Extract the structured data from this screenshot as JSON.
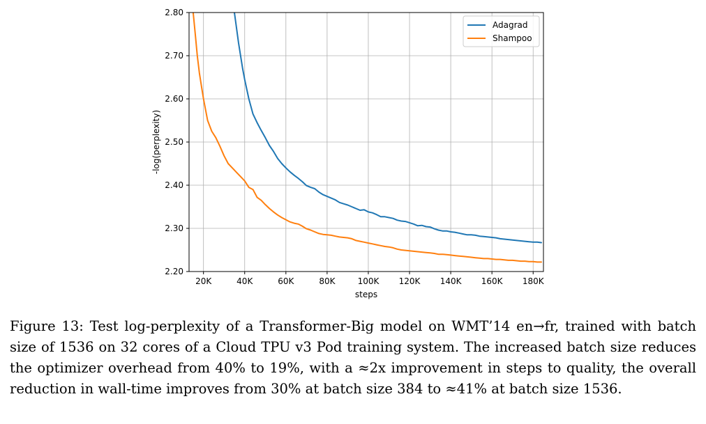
{
  "chart_data": {
    "type": "line",
    "xlabel": "steps",
    "ylabel": "-log(perplexity)",
    "xlim": [
      13000,
      185000
    ],
    "ylim": [
      2.2,
      2.8
    ],
    "x_ticks": [
      20000,
      40000,
      60000,
      80000,
      100000,
      120000,
      140000,
      160000,
      180000
    ],
    "x_tick_labels": [
      "20K",
      "40K",
      "60K",
      "80K",
      "100K",
      "120K",
      "140K",
      "160K",
      "180K"
    ],
    "y_ticks": [
      2.2,
      2.3,
      2.4,
      2.5,
      2.6,
      2.7,
      2.8
    ],
    "y_tick_labels": [
      "2.20",
      "2.30",
      "2.40",
      "2.50",
      "2.60",
      "2.70",
      "2.80"
    ],
    "grid": true,
    "legend_position": "top-right",
    "series": [
      {
        "name": "Adagrad",
        "color": "#1f77b4",
        "x": [
          35000,
          37000,
          39000,
          40000,
          42000,
          44000,
          46000,
          48000,
          50000,
          52000,
          54000,
          56000,
          58000,
          60000,
          62000,
          64000,
          66000,
          68000,
          70000,
          72000,
          74000,
          76000,
          78000,
          80000,
          82000,
          84000,
          86000,
          88000,
          90000,
          92000,
          94000,
          96000,
          98000,
          100000,
          102000,
          104000,
          106000,
          108000,
          110000,
          112000,
          114000,
          116000,
          118000,
          120000,
          122000,
          124000,
          126000,
          128000,
          130000,
          132000,
          134000,
          136000,
          138000,
          140000,
          142000,
          144000,
          146000,
          148000,
          150000,
          152000,
          154000,
          156000,
          158000,
          160000,
          162000,
          164000,
          166000,
          168000,
          170000,
          172000,
          174000,
          176000,
          178000,
          180000,
          182000,
          184000
        ],
        "y": [
          2.8,
          2.73,
          2.67,
          2.645,
          2.6,
          2.565,
          2.545,
          2.527,
          2.51,
          2.492,
          2.478,
          2.462,
          2.45,
          2.44,
          2.431,
          2.423,
          2.416,
          2.408,
          2.399,
          2.395,
          2.392,
          2.384,
          2.378,
          2.374,
          2.37,
          2.366,
          2.36,
          2.357,
          2.354,
          2.35,
          2.346,
          2.342,
          2.343,
          2.338,
          2.336,
          2.332,
          2.327,
          2.327,
          2.325,
          2.323,
          2.319,
          2.317,
          2.316,
          2.313,
          2.31,
          2.306,
          2.307,
          2.304,
          2.303,
          2.299,
          2.296,
          2.294,
          2.294,
          2.292,
          2.291,
          2.289,
          2.287,
          2.285,
          2.285,
          2.284,
          2.282,
          2.281,
          2.28,
          2.279,
          2.278,
          2.276,
          2.275,
          2.274,
          2.273,
          2.272,
          2.271,
          2.27,
          2.269,
          2.268,
          2.268,
          2.267
        ]
      },
      {
        "name": "Shampoo",
        "color": "#ff7f0e",
        "x": [
          15000,
          16000,
          17000,
          18000,
          19000,
          20000,
          22000,
          24000,
          26000,
          28000,
          30000,
          32000,
          34000,
          36000,
          38000,
          40000,
          42000,
          44000,
          46000,
          48000,
          50000,
          52000,
          54000,
          56000,
          58000,
          60000,
          62000,
          64000,
          66000,
          68000,
          70000,
          72000,
          74000,
          76000,
          78000,
          80000,
          82000,
          84000,
          86000,
          88000,
          90000,
          92000,
          94000,
          96000,
          98000,
          100000,
          102000,
          104000,
          106000,
          108000,
          110000,
          112000,
          114000,
          116000,
          118000,
          120000,
          122000,
          124000,
          126000,
          128000,
          130000,
          132000,
          134000,
          136000,
          138000,
          140000,
          142000,
          144000,
          146000,
          148000,
          150000,
          152000,
          154000,
          156000,
          158000,
          160000,
          162000,
          164000,
          166000,
          168000,
          170000,
          172000,
          174000,
          176000,
          178000,
          180000,
          182000,
          184000
        ],
        "y": [
          2.8,
          2.75,
          2.7,
          2.66,
          2.63,
          2.6,
          2.55,
          2.525,
          2.51,
          2.49,
          2.468,
          2.45,
          2.44,
          2.43,
          2.42,
          2.41,
          2.395,
          2.39,
          2.372,
          2.365,
          2.355,
          2.346,
          2.338,
          2.331,
          2.325,
          2.32,
          2.315,
          2.312,
          2.31,
          2.305,
          2.299,
          2.296,
          2.292,
          2.288,
          2.286,
          2.285,
          2.284,
          2.282,
          2.28,
          2.279,
          2.278,
          2.276,
          2.272,
          2.27,
          2.268,
          2.266,
          2.264,
          2.262,
          2.26,
          2.258,
          2.257,
          2.255,
          2.252,
          2.25,
          2.249,
          2.248,
          2.247,
          2.246,
          2.245,
          2.244,
          2.243,
          2.242,
          2.24,
          2.24,
          2.239,
          2.238,
          2.237,
          2.236,
          2.235,
          2.234,
          2.233,
          2.232,
          2.231,
          2.23,
          2.23,
          2.229,
          2.228,
          2.228,
          2.227,
          2.226,
          2.226,
          2.225,
          2.224,
          2.224,
          2.223,
          2.223,
          2.222,
          2.222
        ]
      }
    ]
  },
  "caption": {
    "text": "Figure 13: Test log-perplexity of a Transformer-Big model on WMT’14 en→fr, trained with batch size of 1536 on 32 cores of a Cloud TPU v3 Pod training system. The increased batch size reduces the optimizer overhead from 40% to 19%, with a ≈2x improvement in steps to quality, the overall reduction in wall-time improves from 30% at batch size 384 to ≈41% at batch size 1536."
  }
}
